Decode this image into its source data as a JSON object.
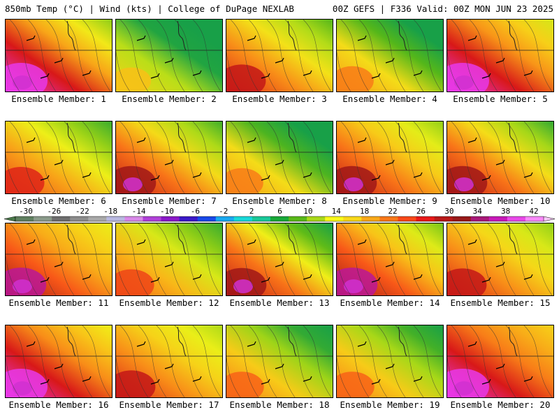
{
  "header": {
    "left": "850mb Temp (°C) | Wind (kts) | College of DuPage NEXLAB",
    "right": "00Z GEFS | F336 Valid: 00Z MON JUN 23 2025"
  },
  "members": [
    {
      "label": "Ensemble Member: 1",
      "warmth": 1.0,
      "cold_ne": 0.55
    },
    {
      "label": "Ensemble Member: 2",
      "warmth": 0.45,
      "cold_ne": 0.55
    },
    {
      "label": "Ensemble Member: 3",
      "warmth": 0.8,
      "cold_ne": 0.3
    },
    {
      "label": "Ensemble Member: 4",
      "warmth": 0.6,
      "cold_ne": 0.9
    },
    {
      "label": "Ensemble Member: 5",
      "warmth": 1.0,
      "cold_ne": 0.3
    },
    {
      "label": "Ensemble Member: 6",
      "warmth": 0.75,
      "cold_ne": 0.3
    },
    {
      "label": "Ensemble Member: 7",
      "warmth": 0.85,
      "cold_ne": 0.5
    },
    {
      "label": "Ensemble Member: 8",
      "warmth": 0.6,
      "cold_ne": 1.0
    },
    {
      "label": "Ensemble Member: 9",
      "warmth": 0.85,
      "cold_ne": 0.2
    },
    {
      "label": "Ensemble Member: 10",
      "warmth": 0.85,
      "cold_ne": 0.55
    },
    {
      "label": "Ensemble Member: 11",
      "warmth": 0.9,
      "cold_ne": 0.0
    },
    {
      "label": "Ensemble Member: 12",
      "warmth": 0.7,
      "cold_ne": 0.2
    },
    {
      "label": "Ensemble Member: 13",
      "warmth": 0.85,
      "cold_ne": 0.9
    },
    {
      "label": "Ensemble Member: 14",
      "warmth": 0.9,
      "cold_ne": 0.4
    },
    {
      "label": "Ensemble Member: 15",
      "warmth": 0.8,
      "cold_ne": 0.1
    },
    {
      "label": "Ensemble Member: 16",
      "warmth": 1.0,
      "cold_ne": 0.2
    },
    {
      "label": "Ensemble Member: 17",
      "warmth": 0.8,
      "cold_ne": 0.0
    },
    {
      "label": "Ensemble Member: 18",
      "warmth": 0.65,
      "cold_ne": 0.5
    },
    {
      "label": "Ensemble Member: 19",
      "warmth": 0.65,
      "cold_ne": 0.4
    },
    {
      "label": "Ensemble Member: 20",
      "warmth": 1.0,
      "cold_ne": 0.0
    }
  ],
  "colorbar": {
    "labels": [
      "-30",
      "-26",
      "-22",
      "-18",
      "-14",
      "-10",
      "-6",
      "-2",
      "2",
      "6",
      "10",
      "14",
      "18",
      "22",
      "26",
      "30",
      "34",
      "38",
      "42"
    ],
    "colors": [
      "#5f7f5f",
      "#8a9a8a",
      "#6e6e6e",
      "#8c8c8c",
      "#a8a8a8",
      "#b8b8e0",
      "#d888e8",
      "#b040d8",
      "#8a18c8",
      "#3a18c8",
      "#1848e8",
      "#18a8f0",
      "#18d8d8",
      "#18c898",
      "#18a838",
      "#58b818",
      "#a8d818",
      "#f8f818",
      "#f8d818",
      "#f8a818",
      "#f87818",
      "#f84818",
      "#e81818",
      "#b81818",
      "#981818",
      "#a81878",
      "#c818b8",
      "#e848e8",
      "#f888f8"
    ]
  }
}
